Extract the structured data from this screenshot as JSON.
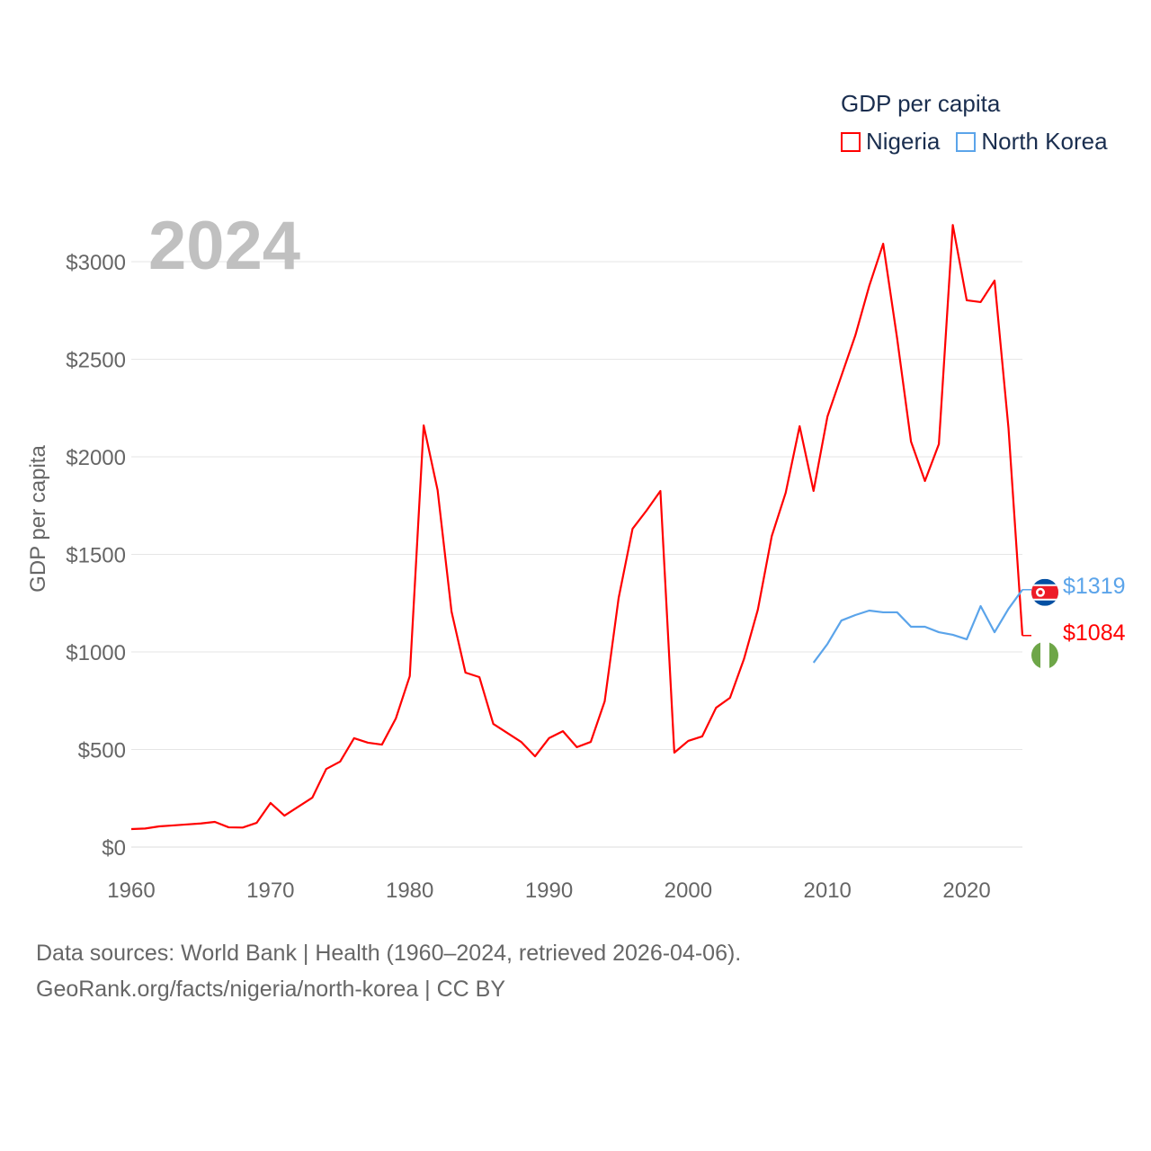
{
  "chart_data": {
    "type": "line",
    "title": "GDP per capita",
    "overlay_year": "2024",
    "xlabel": "",
    "ylabel": "GDP per capita",
    "xlim": [
      1960,
      2024
    ],
    "ylim": [
      0,
      3200
    ],
    "x_ticks": [
      "1960",
      "1970",
      "1980",
      "1990",
      "2000",
      "2010",
      "2020"
    ],
    "y_ticks": [
      "$0",
      "$500",
      "$1000",
      "$1500",
      "$2000",
      "$2500",
      "$3000"
    ],
    "grid": true,
    "legend_position": "top-right",
    "series": [
      {
        "name": "Nigeria",
        "color": "#ff0000",
        "end_label": "$1084",
        "x": [
          1960,
          1961,
          1962,
          1963,
          1964,
          1965,
          1966,
          1967,
          1968,
          1969,
          1970,
          1971,
          1972,
          1973,
          1974,
          1975,
          1976,
          1977,
          1978,
          1979,
          1980,
          1981,
          1982,
          1983,
          1984,
          1985,
          1986,
          1987,
          1988,
          1989,
          1990,
          1991,
          1992,
          1993,
          1994,
          1995,
          1996,
          1997,
          1998,
          1999,
          2000,
          2001,
          2002,
          2003,
          2004,
          2005,
          2006,
          2007,
          2008,
          2009,
          2010,
          2011,
          2012,
          2013,
          2014,
          2015,
          2016,
          2017,
          2018,
          2019,
          2020,
          2021,
          2022,
          2023,
          2024
        ],
        "values": [
          92,
          95,
          106,
          111,
          116,
          121,
          129,
          101,
          100,
          124,
          226,
          161,
          207,
          253,
          400,
          438,
          558,
          535,
          525,
          659,
          876,
          2161,
          1829,
          1207,
          894,
          871,
          631,
          585,
          539,
          465,
          558,
          594,
          512,
          539,
          747,
          1276,
          1631,
          1724,
          1825,
          484,
          544,
          567,
          714,
          765,
          963,
          1217,
          1594,
          1816,
          2157,
          1825,
          2207,
          2415,
          2622,
          2876,
          3092,
          2608,
          2078,
          1876,
          2065,
          3188,
          2802,
          2793,
          2903,
          2147,
          1084
        ]
      },
      {
        "name": "North Korea",
        "color": "#5ba4ea",
        "end_label": "$1319",
        "x": [
          2009,
          2010,
          2011,
          2012,
          2013,
          2014,
          2015,
          2016,
          2017,
          2018,
          2019,
          2020,
          2021,
          2022,
          2023,
          2024
        ],
        "values": [
          945,
          1041,
          1161,
          1189,
          1212,
          1203,
          1203,
          1129,
          1129,
          1101,
          1088,
          1065,
          1235,
          1101,
          1221,
          1319
        ]
      }
    ]
  },
  "footer": {
    "line1": "Data sources: World Bank | Health (1960–2024, retrieved 2026-04-06).",
    "line2": "GeoRank.org/facts/nigeria/north-korea | CC BY"
  }
}
